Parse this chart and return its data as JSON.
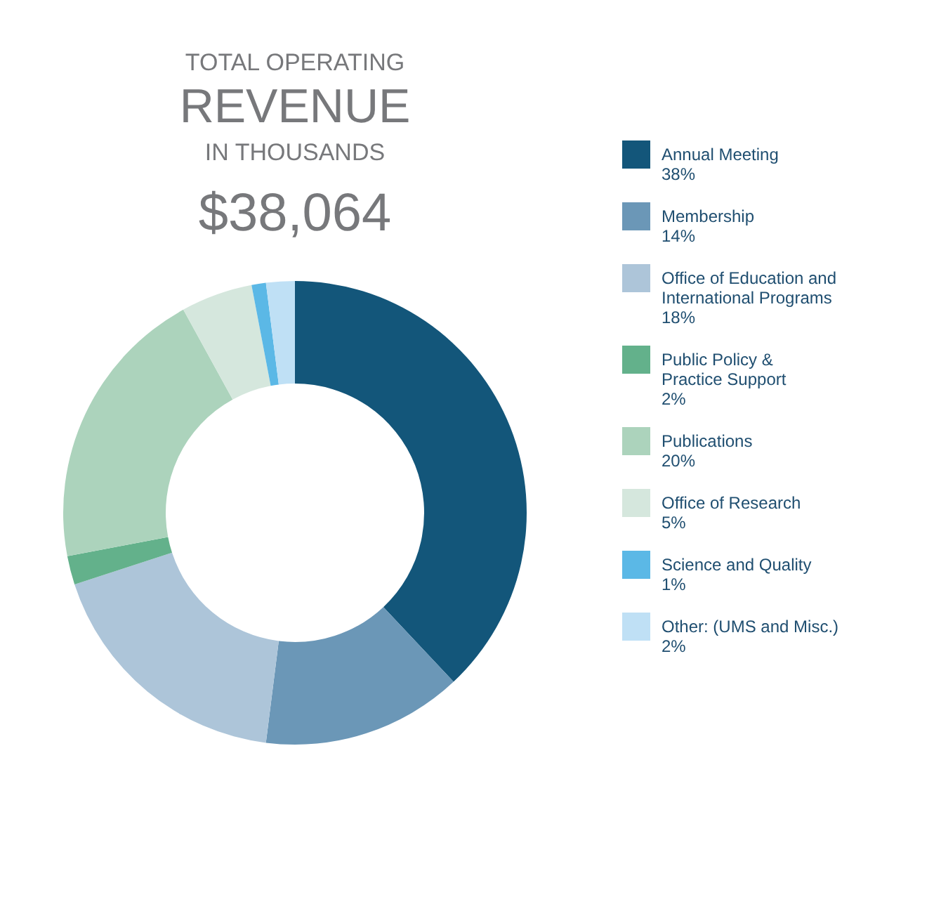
{
  "chart_data": {
    "type": "donut",
    "title": "TOTAL OPERATING",
    "subtitle": "REVENUE",
    "annotations": [
      "IN THOUSANDS",
      "$38,064"
    ],
    "categories": [
      "Annual Meeting",
      "Membership",
      "Office of Education and International Programs",
      "Public Policy & Practice Support",
      "Publications",
      "Office of Research",
      "Science and Quality",
      "Other: (UMS and Misc.)"
    ],
    "values": [
      38,
      14,
      18,
      2,
      20,
      5,
      1,
      2
    ],
    "value_labels": [
      "38%",
      "14%",
      "18%",
      "2%",
      "20%",
      "5%",
      "1%",
      "2%"
    ],
    "colors": [
      "#13567a",
      "#6b97b7",
      "#adc5d9",
      "#63b18b",
      "#acd3bc",
      "#d5e7dd",
      "#5bb8e6",
      "#bfe0f5"
    ],
    "legend": "right"
  }
}
